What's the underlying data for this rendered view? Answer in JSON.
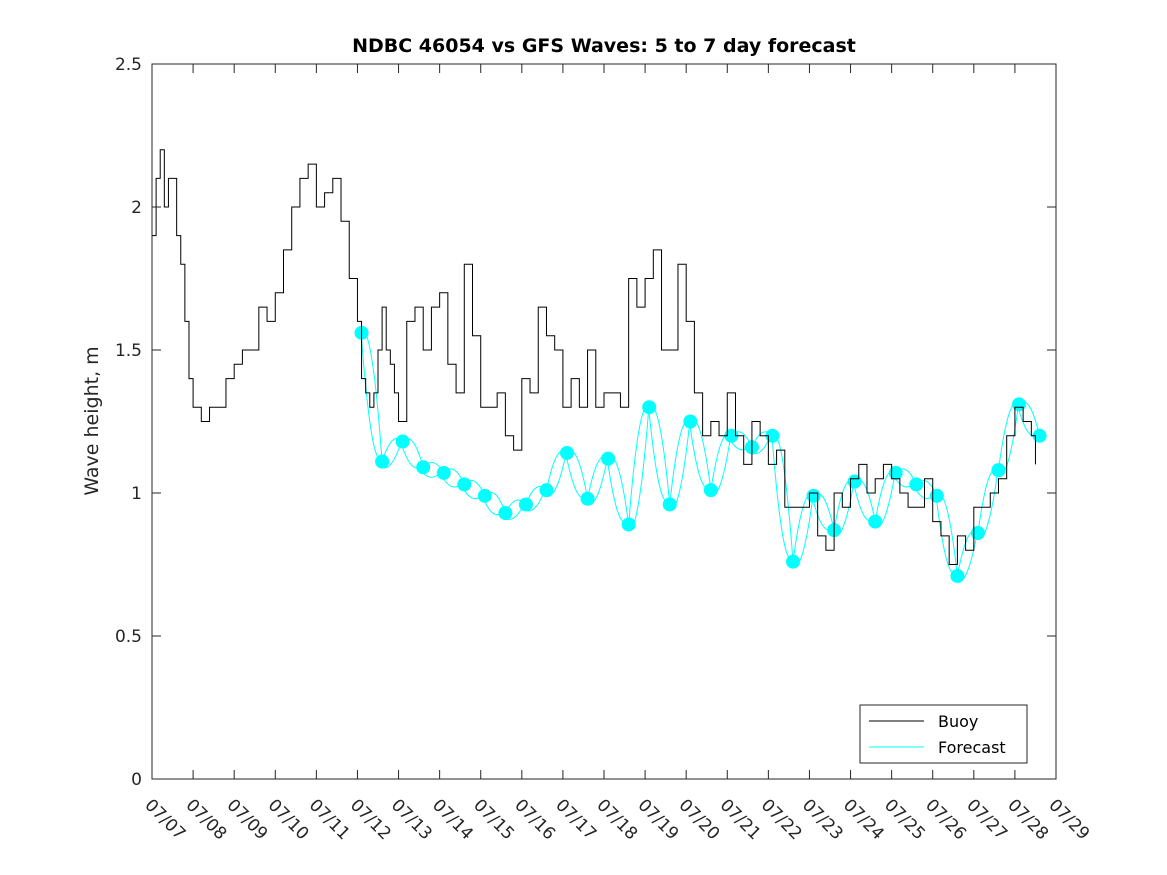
{
  "chart_data": {
    "type": "line",
    "title": "NDBC 46054 vs GFS Waves: 5 to 7 day forecast",
    "xlabel": "",
    "ylabel": "Wave height, m",
    "xlim": [
      "07/07",
      "07/29"
    ],
    "ylim": [
      0,
      2.5
    ],
    "yticks": [
      "0",
      "0.5",
      "1",
      "1.5",
      "2",
      "2.5"
    ],
    "xticks": [
      "07/07",
      "07/08",
      "07/09",
      "07/10",
      "07/11",
      "07/12",
      "07/13",
      "07/14",
      "07/15",
      "07/16",
      "07/17",
      "07/18",
      "07/19",
      "07/20",
      "07/21",
      "07/22",
      "07/23",
      "07/24",
      "07/25",
      "07/26",
      "07/27",
      "07/28",
      "07/29"
    ],
    "grid": false,
    "legend": {
      "location": "bottom-right",
      "entries": [
        "Buoy",
        "Forecast"
      ]
    },
    "colors": {
      "buoy": "#000000",
      "forecast": "#00ffff"
    },
    "series": [
      {
        "name": "Buoy",
        "x_days_from_07_07": [
          0.0,
          0.1,
          0.2,
          0.3,
          0.4,
          0.5,
          0.6,
          0.7,
          0.8,
          0.9,
          1.0,
          1.2,
          1.4,
          1.6,
          1.8,
          2.0,
          2.2,
          2.4,
          2.6,
          2.8,
          3.0,
          3.2,
          3.4,
          3.6,
          3.8,
          4.0,
          4.2,
          4.4,
          4.6,
          4.8,
          5.0,
          5.1,
          5.2,
          5.3,
          5.4,
          5.5,
          5.6,
          5.7,
          5.8,
          5.9,
          6.0,
          6.2,
          6.4,
          6.6,
          6.8,
          7.0,
          7.2,
          7.4,
          7.6,
          7.8,
          8.0,
          8.2,
          8.4,
          8.6,
          8.8,
          9.0,
          9.2,
          9.4,
          9.6,
          9.8,
          10.0,
          10.2,
          10.4,
          10.6,
          10.8,
          11.0,
          11.2,
          11.4,
          11.6,
          11.8,
          12.0,
          12.2,
          12.4,
          12.6,
          12.8,
          13.0,
          13.2,
          13.4,
          13.6,
          13.8,
          14.0,
          14.2,
          14.4,
          14.6,
          14.8,
          15.0,
          15.2,
          15.4,
          15.6,
          15.8,
          16.0,
          16.2,
          16.4,
          16.6,
          16.8,
          17.0,
          17.2,
          17.4,
          17.6,
          17.8,
          18.0,
          18.2,
          18.4,
          18.6,
          18.8,
          19.0,
          19.2,
          19.4,
          19.6,
          19.8,
          20.0,
          20.2,
          20.4,
          20.6,
          20.8,
          21.0,
          21.2,
          21.4,
          21.5
        ],
        "values": [
          1.9,
          2.1,
          2.2,
          2.0,
          2.1,
          2.1,
          1.9,
          1.8,
          1.6,
          1.4,
          1.3,
          1.25,
          1.3,
          1.3,
          1.4,
          1.45,
          1.5,
          1.5,
          1.65,
          1.6,
          1.7,
          1.85,
          2.0,
          2.1,
          2.15,
          2.0,
          2.05,
          2.1,
          1.95,
          1.75,
          1.6,
          1.4,
          1.35,
          1.3,
          1.35,
          1.5,
          1.65,
          1.5,
          1.45,
          1.35,
          1.25,
          1.6,
          1.65,
          1.5,
          1.65,
          1.7,
          1.45,
          1.35,
          1.8,
          1.55,
          1.3,
          1.3,
          1.35,
          1.2,
          1.15,
          1.4,
          1.35,
          1.65,
          1.55,
          1.5,
          1.3,
          1.4,
          1.3,
          1.5,
          1.3,
          1.35,
          1.35,
          1.3,
          1.75,
          1.65,
          1.75,
          1.85,
          1.5,
          1.5,
          1.8,
          1.6,
          1.35,
          1.2,
          1.25,
          1.2,
          1.35,
          1.2,
          1.1,
          1.25,
          1.2,
          1.1,
          1.15,
          0.95,
          0.95,
          0.95,
          1.0,
          0.85,
          0.8,
          1.0,
          0.95,
          1.05,
          1.1,
          1.0,
          1.05,
          1.1,
          1.05,
          1.0,
          0.95,
          0.95,
          1.05,
          0.9,
          0.85,
          0.75,
          0.85,
          0.8,
          0.95,
          0.95,
          1.0,
          1.05,
          1.2,
          1.3,
          1.25,
          1.2,
          1.1
        ]
      },
      {
        "name": "Forecast",
        "x_days_from_07_07": [
          5.1,
          5.6,
          6.1,
          6.6,
          7.1,
          7.6,
          8.1,
          8.6,
          9.1,
          9.6,
          10.1,
          10.6,
          11.1,
          11.6,
          12.1,
          12.6,
          13.1,
          13.6,
          14.1,
          14.6,
          15.1,
          15.6,
          16.1,
          16.6,
          17.1,
          17.6,
          18.1,
          18.6,
          19.1,
          19.6,
          20.1,
          20.6,
          21.1,
          21.6
        ],
        "values": [
          1.56,
          1.11,
          1.18,
          1.09,
          1.07,
          1.03,
          0.99,
          0.93,
          0.96,
          1.01,
          1.14,
          0.98,
          1.12,
          0.89,
          1.3,
          0.96,
          1.25,
          1.01,
          1.2,
          1.16,
          1.2,
          0.76,
          0.99,
          0.87,
          1.04,
          0.9,
          1.07,
          1.03,
          0.99,
          0.71,
          0.86,
          1.08,
          1.31,
          1.2
        ]
      }
    ]
  }
}
